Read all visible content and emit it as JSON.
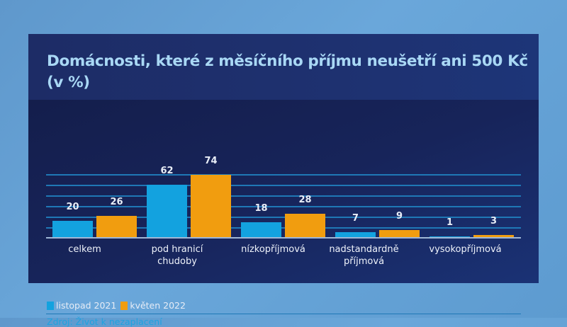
{
  "title": "Domácnosti, které z měsíčního příjmu neušetří ani 500 Kč (v %)",
  "legend": [
    {
      "label": "listopad 2021",
      "color": "#13a2df"
    },
    {
      "label": "květen 2022",
      "color": "#f19d0f"
    }
  ],
  "source": "Zdroj: Život k nezaplacení",
  "categories": [
    {
      "label": "celkem",
      "values": [
        "20",
        "26"
      ]
    },
    {
      "label": "pod hranicí chudoby",
      "values": [
        "62",
        "74"
      ]
    },
    {
      "label": "nízkopříjmová",
      "values": [
        "18",
        "28"
      ]
    },
    {
      "label": "nadstandardně příjmová",
      "values": [
        "7",
        "9"
      ]
    },
    {
      "label": "vysokopříjmová",
      "values": [
        "1",
        "3"
      ]
    }
  ],
  "colors": {
    "background": "#17245a",
    "title": "#a9d8f5",
    "gridline": "#1f78b6",
    "source": "#1ea3e0"
  },
  "chart_data": {
    "type": "bar",
    "title": "Domácnosti, které z měsíčního příjmu neušetří ani 500 Kč (v %)",
    "categories": [
      "celkem",
      "pod hranicí chudoby",
      "nízkopříjmová",
      "nadstandardně příjmová",
      "vysokopříjmová"
    ],
    "series": [
      {
        "name": "listopad 2021",
        "values": [
          20,
          62,
          18,
          7,
          1
        ],
        "color": "#13a2df"
      },
      {
        "name": "květen 2022",
        "values": [
          26,
          74,
          28,
          9,
          3
        ],
        "color": "#f19d0f"
      }
    ],
    "xlabel": "",
    "ylabel": "%",
    "ylim": [
      0,
      74
    ],
    "grid": true,
    "legend_position": "bottom-left",
    "data_labels": true,
    "source": "Zdroj: Život k nezaplacení"
  }
}
